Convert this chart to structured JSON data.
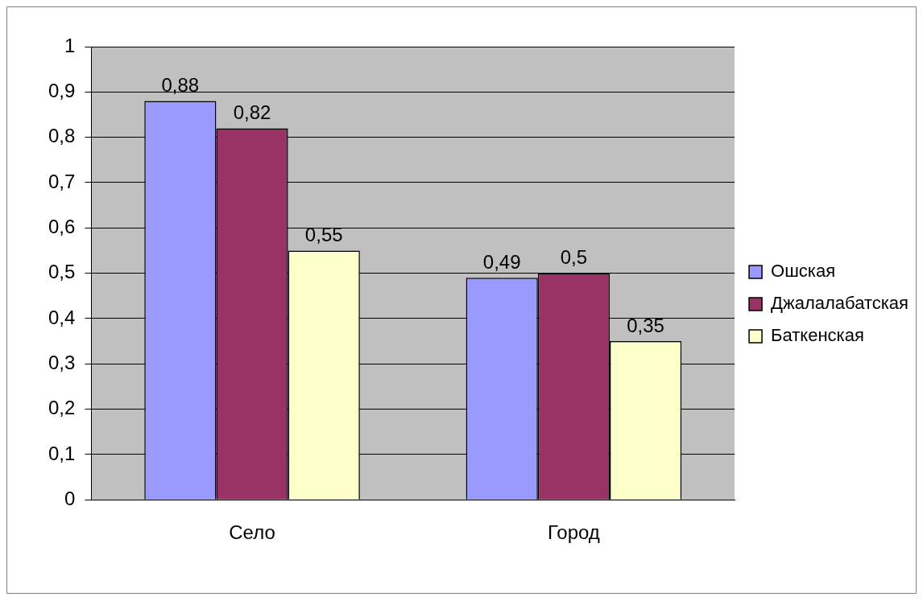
{
  "chart_data": {
    "type": "bar",
    "categories": [
      "Село",
      "Город"
    ],
    "series": [
      {
        "name": "Ошская",
        "color": "#9999ff",
        "values": [
          0.88,
          0.49
        ],
        "value_labels": [
          "0,88",
          "0,49"
        ]
      },
      {
        "name": "Джалалабатская",
        "color": "#993366",
        "values": [
          0.82,
          0.5
        ],
        "value_labels": [
          "0,82",
          "0,5"
        ]
      },
      {
        "name": "Баткенская",
        "color": "#ffffcc",
        "values": [
          0.55,
          0.35
        ],
        "value_labels": [
          "0,55",
          "0,35"
        ]
      }
    ],
    "ylim": [
      0,
      1
    ],
    "yticks": [
      {
        "value": 0,
        "label": "0"
      },
      {
        "value": 0.1,
        "label": "0,1"
      },
      {
        "value": 0.2,
        "label": "0,2"
      },
      {
        "value": 0.3,
        "label": "0,3"
      },
      {
        "value": 0.4,
        "label": "0,4"
      },
      {
        "value": 0.5,
        "label": "0,5"
      },
      {
        "value": 0.6,
        "label": "0,6"
      },
      {
        "value": 0.7,
        "label": "0,7"
      },
      {
        "value": 0.8,
        "label": "0,8"
      },
      {
        "value": 0.9,
        "label": "0,9"
      },
      {
        "value": 1,
        "label": "1"
      }
    ],
    "grid": "y",
    "legend": "right"
  }
}
